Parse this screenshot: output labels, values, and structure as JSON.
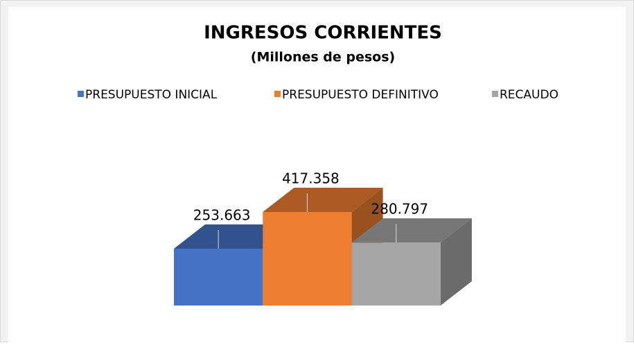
{
  "chart_data": {
    "type": "bar3d",
    "title": "INGRESOS CORRIENTES",
    "subtitle": "(Millones de pesos)",
    "categories": [
      null
    ],
    "series": [
      {
        "name": "PRESUPUESTO INICIAL",
        "color": "#4472c4",
        "values": [
          253663
        ],
        "value_labels": [
          "253.663"
        ]
      },
      {
        "name": "PRESUPUESTO DEFINITIVO",
        "color": "#ed7d31",
        "values": [
          417358
        ],
        "value_labels": [
          "417.358"
        ]
      },
      {
        "name": "RECAUDO",
        "color": "#a5a5a5",
        "values": [
          280797
        ],
        "value_labels": [
          "280.797"
        ]
      }
    ],
    "legend": "top"
  }
}
